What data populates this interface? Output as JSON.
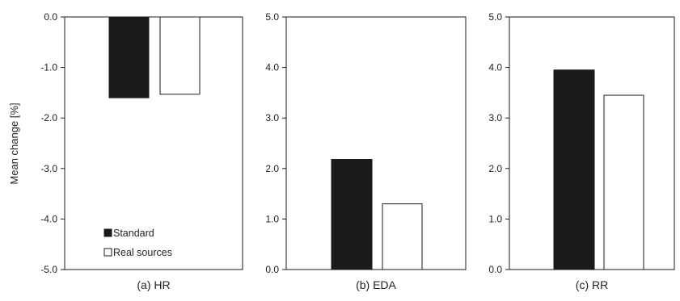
{
  "chart_data": [
    {
      "type": "bar",
      "caption": "(a) HR",
      "ylabel": "Mean change [%]",
      "ylim": [
        -5.0,
        0.0
      ],
      "yticks": [
        "0.0",
        "-1.0",
        "-2.0",
        "-3.0",
        "-4.0",
        "-5.0"
      ],
      "ytick_values": [
        0,
        -1,
        -2,
        -3,
        -4,
        -5
      ],
      "series": [
        {
          "name": "Standard",
          "values": [
            -1.6
          ],
          "color": "#1a1a1a"
        },
        {
          "name": "Real sources",
          "values": [
            -1.53
          ],
          "color": "#ffffff"
        }
      ],
      "legend": "bottom-left"
    },
    {
      "type": "bar",
      "caption": "(b) EDA",
      "ylim": [
        0.0,
        5.0
      ],
      "yticks": [
        "5.0",
        "4.0",
        "3.0",
        "2.0",
        "1.0",
        "0.0"
      ],
      "ytick_values": [
        5,
        4,
        3,
        2,
        1,
        0
      ],
      "series": [
        {
          "name": "Standard",
          "values": [
            2.18
          ],
          "color": "#1a1a1a"
        },
        {
          "name": "Real sources",
          "values": [
            1.3
          ],
          "color": "#ffffff"
        }
      ]
    },
    {
      "type": "bar",
      "caption": "(c) RR",
      "ylim": [
        0.0,
        5.0
      ],
      "yticks": [
        "5.0",
        "4.0",
        "3.0",
        "2.0",
        "1.0",
        "0.0"
      ],
      "ytick_values": [
        5,
        4,
        3,
        2,
        1,
        0
      ],
      "series": [
        {
          "name": "Standard",
          "values": [
            3.95
          ],
          "color": "#1a1a1a"
        },
        {
          "name": "Real sources",
          "values": [
            3.45
          ],
          "color": "#ffffff"
        }
      ]
    }
  ],
  "legend": {
    "items": [
      {
        "label": "Standard",
        "color": "#1a1a1a"
      },
      {
        "label": "Real sources",
        "color": "#ffffff"
      }
    ]
  }
}
